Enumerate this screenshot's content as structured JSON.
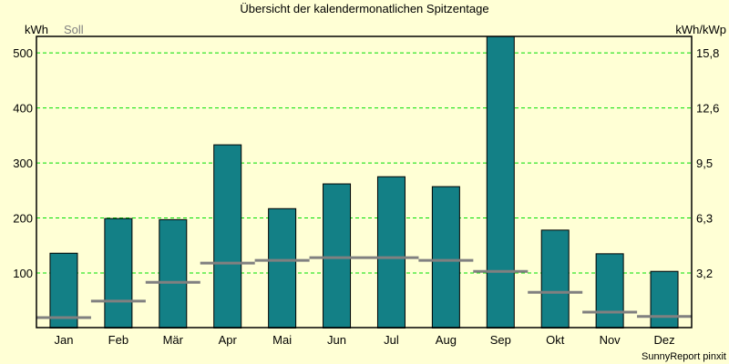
{
  "colors": {
    "background": "#ffffd5",
    "bar": "#138086",
    "soll": "#808080",
    "grid": "#00e000"
  },
  "chart_data": {
    "type": "bar",
    "title": "Übersicht der kalendermonatlichen Spitzentage",
    "ylabel": "kWh",
    "ylabel_right": "kWh/kWp",
    "legend": [
      "Soll"
    ],
    "legend_placement": "top-left",
    "footer": "SunnyReport pinxit",
    "categories": [
      "Jan",
      "Feb",
      "Mär",
      "Apr",
      "Mai",
      "Jun",
      "Jul",
      "Aug",
      "Sep",
      "Okt",
      "Nov",
      "Dez"
    ],
    "ylim": [
      0,
      530
    ],
    "yticks": [
      100,
      200,
      300,
      400,
      500
    ],
    "yticks_right": [
      "3,2",
      "6,3",
      "9,5",
      "12,6",
      "15,8"
    ],
    "grid": true,
    "series": [
      {
        "name": "kWh",
        "type": "bar",
        "values": [
          136,
          199,
          197,
          333,
          217,
          262,
          275,
          257,
          530,
          178,
          135,
          103
        ]
      },
      {
        "name": "Soll",
        "type": "marker",
        "values": [
          19,
          49,
          83,
          118,
          123,
          128,
          128,
          123,
          103,
          65,
          29,
          21
        ]
      }
    ]
  }
}
